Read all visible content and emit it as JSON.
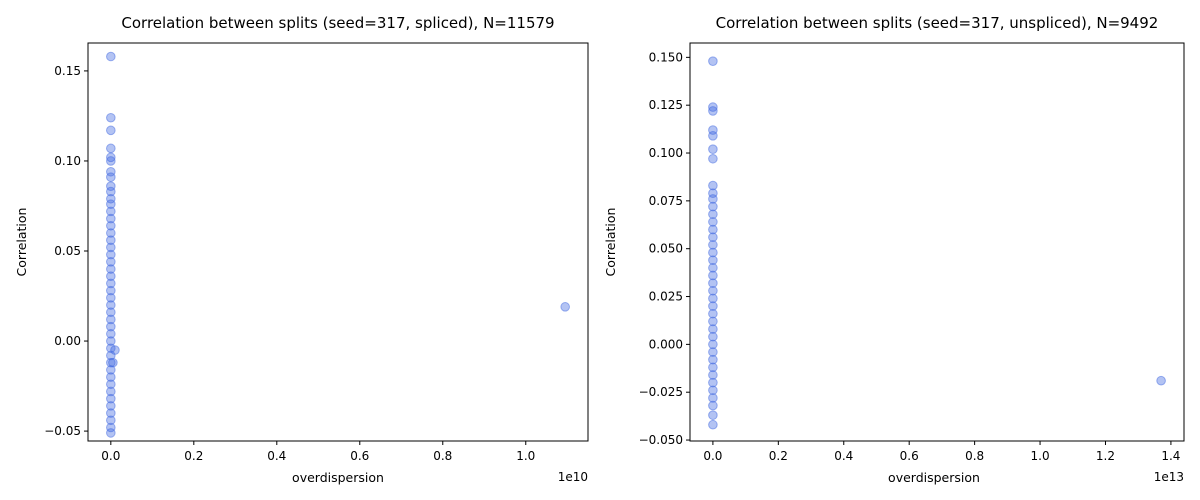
{
  "chart_data": [
    {
      "type": "scatter",
      "title": "Correlation between splits (seed=317, spliced), N=11579",
      "xlabel": "overdispersion",
      "ylabel": "Correlation",
      "x_offset_label": "1e10",
      "x_scale": 10000000000,
      "xlim": [
        -0.055,
        1.15
      ],
      "ylim": [
        -0.0555,
        0.1655
      ],
      "xticks": [
        0.0,
        0.2,
        0.4,
        0.6,
        0.8,
        1.0
      ],
      "xtick_labels": [
        "0.0",
        "0.2",
        "0.4",
        "0.6",
        "0.8",
        "1.0"
      ],
      "yticks": [
        -0.05,
        0.0,
        0.05,
        0.1,
        0.15
      ],
      "ytick_labels": [
        "−0.05",
        "0.00",
        "0.05",
        "0.10",
        "0.15"
      ],
      "grid": false,
      "marker_color": "#4169e1",
      "marker_alpha": 0.4,
      "points": [
        {
          "x": 0.0,
          "y": 0.158
        },
        {
          "x": 0.0,
          "y": 0.124
        },
        {
          "x": 0.0,
          "y": 0.117
        },
        {
          "x": 0.0,
          "y": 0.107
        },
        {
          "x": 0.0,
          "y": 0.102
        },
        {
          "x": 0.0,
          "y": 0.1
        },
        {
          "x": 0.0,
          "y": 0.094
        },
        {
          "x": 0.0,
          "y": 0.091
        },
        {
          "x": 0.0,
          "y": 0.086
        },
        {
          "x": 0.0,
          "y": 0.083
        },
        {
          "x": 0.0,
          "y": 0.079
        },
        {
          "x": 0.0,
          "y": 0.076
        },
        {
          "x": 0.0,
          "y": 0.072
        },
        {
          "x": 0.0,
          "y": 0.068
        },
        {
          "x": 0.0,
          "y": 0.064
        },
        {
          "x": 0.0,
          "y": 0.06
        },
        {
          "x": 0.0,
          "y": 0.056
        },
        {
          "x": 0.0,
          "y": 0.052
        },
        {
          "x": 0.0,
          "y": 0.048
        },
        {
          "x": 0.0,
          "y": 0.044
        },
        {
          "x": 0.0,
          "y": 0.04
        },
        {
          "x": 0.0,
          "y": 0.036
        },
        {
          "x": 0.0,
          "y": 0.032
        },
        {
          "x": 0.0,
          "y": 0.028
        },
        {
          "x": 0.0,
          "y": 0.024
        },
        {
          "x": 0.0,
          "y": 0.02
        },
        {
          "x": 0.0,
          "y": 0.016
        },
        {
          "x": 0.0,
          "y": 0.012
        },
        {
          "x": 0.0,
          "y": 0.008
        },
        {
          "x": 0.0,
          "y": 0.004
        },
        {
          "x": 0.0,
          "y": 0.0
        },
        {
          "x": 0.0,
          "y": -0.004
        },
        {
          "x": 0.0,
          "y": -0.008
        },
        {
          "x": 0.0,
          "y": -0.012
        },
        {
          "x": 0.0,
          "y": -0.016
        },
        {
          "x": 0.0,
          "y": -0.02
        },
        {
          "x": 0.0,
          "y": -0.024
        },
        {
          "x": 0.0,
          "y": -0.028
        },
        {
          "x": 0.0,
          "y": -0.032
        },
        {
          "x": 0.0,
          "y": -0.036
        },
        {
          "x": 0.0,
          "y": -0.04
        },
        {
          "x": 0.0,
          "y": -0.044
        },
        {
          "x": 0.0,
          "y": -0.048
        },
        {
          "x": 0.0,
          "y": -0.051
        },
        {
          "x": 0.01,
          "y": -0.005
        },
        {
          "x": 0.005,
          "y": -0.012
        },
        {
          "x": 1.095,
          "y": 0.019
        }
      ]
    },
    {
      "type": "scatter",
      "title": "Correlation between splits (seed=317, unspliced), N=9492",
      "xlabel": "overdispersion",
      "ylabel": "Correlation",
      "x_offset_label": "1e13",
      "x_scale": 10000000000000,
      "xlim": [
        -0.07,
        1.44
      ],
      "ylim": [
        -0.0505,
        0.1575
      ],
      "xticks": [
        0.0,
        0.2,
        0.4,
        0.6,
        0.8,
        1.0,
        1.2,
        1.4
      ],
      "xtick_labels": [
        "0.0",
        "0.2",
        "0.4",
        "0.6",
        "0.8",
        "1.0",
        "1.2",
        "1.4"
      ],
      "yticks": [
        -0.05,
        -0.025,
        0.0,
        0.025,
        0.05,
        0.075,
        0.1,
        0.125,
        0.15
      ],
      "ytick_labels": [
        "−0.050",
        "−0.025",
        "0.000",
        "0.025",
        "0.050",
        "0.075",
        "0.100",
        "0.125",
        "0.150"
      ],
      "grid": false,
      "marker_color": "#4169e1",
      "marker_alpha": 0.4,
      "points": [
        {
          "x": 0.0,
          "y": 0.148
        },
        {
          "x": 0.0,
          "y": 0.124
        },
        {
          "x": 0.0,
          "y": 0.122
        },
        {
          "x": 0.0,
          "y": 0.112
        },
        {
          "x": 0.0,
          "y": 0.109
        },
        {
          "x": 0.0,
          "y": 0.102
        },
        {
          "x": 0.0,
          "y": 0.097
        },
        {
          "x": 0.0,
          "y": 0.083
        },
        {
          "x": 0.0,
          "y": 0.079
        },
        {
          "x": 0.0,
          "y": 0.076
        },
        {
          "x": 0.0,
          "y": 0.072
        },
        {
          "x": 0.0,
          "y": 0.068
        },
        {
          "x": 0.0,
          "y": 0.064
        },
        {
          "x": 0.0,
          "y": 0.06
        },
        {
          "x": 0.0,
          "y": 0.056
        },
        {
          "x": 0.0,
          "y": 0.052
        },
        {
          "x": 0.0,
          "y": 0.048
        },
        {
          "x": 0.0,
          "y": 0.044
        },
        {
          "x": 0.0,
          "y": 0.04
        },
        {
          "x": 0.0,
          "y": 0.036
        },
        {
          "x": 0.0,
          "y": 0.032
        },
        {
          "x": 0.0,
          "y": 0.028
        },
        {
          "x": 0.0,
          "y": 0.024
        },
        {
          "x": 0.0,
          "y": 0.02
        },
        {
          "x": 0.0,
          "y": 0.016
        },
        {
          "x": 0.0,
          "y": 0.012
        },
        {
          "x": 0.0,
          "y": 0.008
        },
        {
          "x": 0.0,
          "y": 0.004
        },
        {
          "x": 0.0,
          "y": 0.0
        },
        {
          "x": 0.0,
          "y": -0.004
        },
        {
          "x": 0.0,
          "y": -0.008
        },
        {
          "x": 0.0,
          "y": -0.012
        },
        {
          "x": 0.0,
          "y": -0.016
        },
        {
          "x": 0.0,
          "y": -0.02
        },
        {
          "x": 0.0,
          "y": -0.024
        },
        {
          "x": 0.0,
          "y": -0.028
        },
        {
          "x": 0.0,
          "y": -0.032
        },
        {
          "x": 0.0,
          "y": -0.037
        },
        {
          "x": 0.0,
          "y": -0.042
        },
        {
          "x": 1.37,
          "y": -0.019
        }
      ]
    }
  ]
}
